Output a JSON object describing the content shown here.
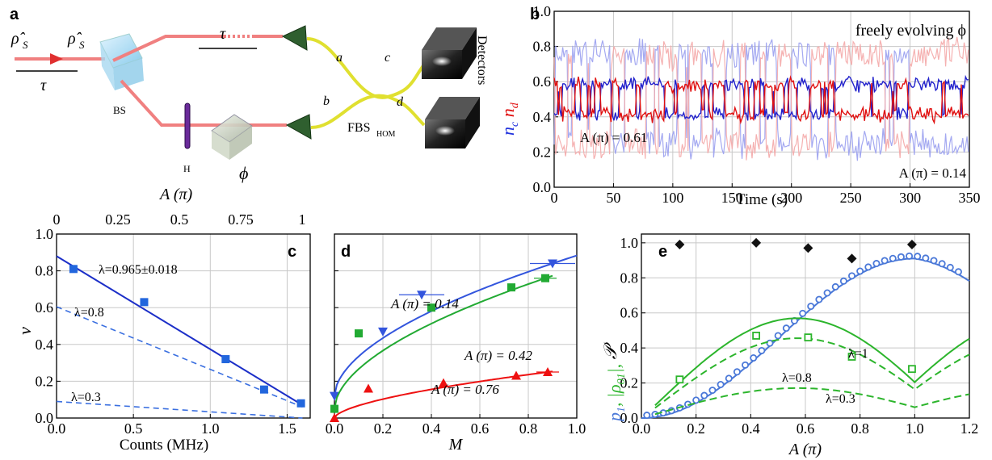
{
  "panel_labels": {
    "a": "a",
    "b": "b",
    "c": "c",
    "d": "d",
    "e": "e"
  },
  "setup": {
    "rho_in": "ρ̂",
    "rho_in_sub": "S",
    "rho_out": "ρ̂",
    "rho_out_sub": "S",
    "tau1": "τ",
    "tau2": "τ",
    "bs": "BS",
    "h": "H",
    "phi": "ϕ",
    "a": "a",
    "b": "b",
    "c": "c",
    "d": "d",
    "fbs": "FBS",
    "fbs_sub": "HOM",
    "detectors": "Detectors",
    "top_axis_title": "A (π)",
    "top_axis_ticks": [
      "0",
      "0.25",
      "0.5",
      "0.75",
      "1"
    ],
    "top_axis_tick_positions": [
      0,
      0.25,
      0.5,
      0.75,
      1
    ]
  },
  "chart_data": [
    {
      "panel": "b",
      "type": "line",
      "title": "freely evolving ϕ",
      "xlabel": "Time (s)",
      "ylabel_blue": "n",
      "ylabel_blue_sub": "c",
      "ylabel_red": "n",
      "ylabel_red_sub": "d",
      "xlim": [
        0,
        350
      ],
      "ylim": [
        0,
        1
      ],
      "xticks": [
        "0",
        "50",
        "100",
        "150",
        "200",
        "250",
        "300",
        "350"
      ],
      "yticks": [
        "0.0",
        "0.2",
        "0.4",
        "0.6",
        "0.8",
        "1.0"
      ],
      "annotations": [
        "A (π) = 0.61",
        "A (π) = 0.14"
      ],
      "series": [
        {
          "color": "#2222cc",
          "center": 0.5,
          "amp": 0.11
        },
        {
          "color": "#e01010",
          "center": 0.5,
          "amp": 0.11
        },
        {
          "color": "#9aa0f0",
          "center": 0.5,
          "amp": 0.33
        },
        {
          "color": "#f4a8a8",
          "center": 0.5,
          "amp": 0.33
        }
      ]
    },
    {
      "panel": "c",
      "type": "scatter",
      "xlabel": "Counts (MHz)",
      "ylabel": "ν",
      "xlim": [
        0,
        1.65
      ],
      "ylim": [
        0,
        1.0
      ],
      "xticks": [
        "0.0",
        "0.5",
        "1.0",
        "1.5"
      ],
      "yticks": [
        "0.0",
        "0.2",
        "0.4",
        "0.6",
        "0.8",
        "1.0"
      ],
      "points": {
        "x": [
          0.11,
          0.57,
          1.1,
          1.35,
          1.59
        ],
        "y": [
          0.81,
          0.63,
          0.32,
          0.155,
          0.08
        ]
      },
      "fit": {
        "x": [
          0,
          1.6
        ],
        "y": [
          0.88,
          0.07
        ],
        "label": "λ=0.965±0.018"
      },
      "dashed": [
        {
          "x": [
            0,
            1.6
          ],
          "y": [
            0.605,
            0.06
          ],
          "label": "λ=0.8"
        },
        {
          "x": [
            0,
            1.6
          ],
          "y": [
            0.09,
            0.0
          ],
          "label": "λ=0.3"
        }
      ]
    },
    {
      "panel": "d",
      "type": "scatter",
      "xlabel": "M",
      "xlim": [
        0,
        1.0
      ],
      "ylim": [
        0,
        1.0
      ],
      "xticks": [
        "0.0",
        "0.2",
        "0.4",
        "0.6",
        "0.8",
        "1.0"
      ],
      "series": [
        {
          "name": "A (π) = 0.14",
          "color": "#3355dd",
          "marker": "tri-down",
          "x": [
            0.0,
            0.2,
            0.36,
            0.9
          ],
          "y": [
            0.12,
            0.47,
            0.67,
            0.84
          ]
        },
        {
          "name": "A (π) = 0.42",
          "color": "#22aa33",
          "marker": "square",
          "x": [
            0.0,
            0.1,
            0.4,
            0.73,
            0.87
          ],
          "y": [
            0.05,
            0.46,
            0.6,
            0.71,
            0.76
          ]
        },
        {
          "name": "A (π) = 0.76",
          "color": "#ee1111",
          "marker": "triangle",
          "x": [
            0.0,
            0.14,
            0.45,
            0.75,
            0.88
          ],
          "y": [
            0.0,
            0.16,
            0.19,
            0.23,
            0.25
          ]
        }
      ]
    },
    {
      "panel": "e",
      "type": "scatter",
      "xlabel": "A (π)",
      "ylabel_parts": [
        "p",
        "1",
        ", |ρ",
        "01",
        "|, ",
        "𝒫"
      ],
      "xlim": [
        0,
        1.2
      ],
      "ylim": [
        0,
        1.05
      ],
      "xticks": [
        "0.0",
        "0.2",
        "0.4",
        "0.6",
        "0.8",
        "1.0",
        "1.2"
      ],
      "yticks": [
        "0.0",
        "0.2",
        "0.4",
        "0.6",
        "0.8",
        "1.0"
      ],
      "purity": {
        "x": [
          0.14,
          0.42,
          0.61,
          0.77,
          0.99
        ],
        "y": [
          0.99,
          1.0,
          0.97,
          0.91,
          0.99
        ]
      },
      "rho01": {
        "x": [
          0.14,
          0.42,
          0.61,
          0.77,
          0.99
        ],
        "y": [
          0.22,
          0.47,
          0.46,
          0.35,
          0.28
        ]
      },
      "rho_curves": [
        {
          "label": "λ=1",
          "style": "solid"
        },
        {
          "label": "λ=0.8",
          "style": "dashed"
        },
        {
          "label": "λ=0.3",
          "style": "dashed"
        }
      ],
      "p1_points_color": "#4a78d8"
    }
  ]
}
